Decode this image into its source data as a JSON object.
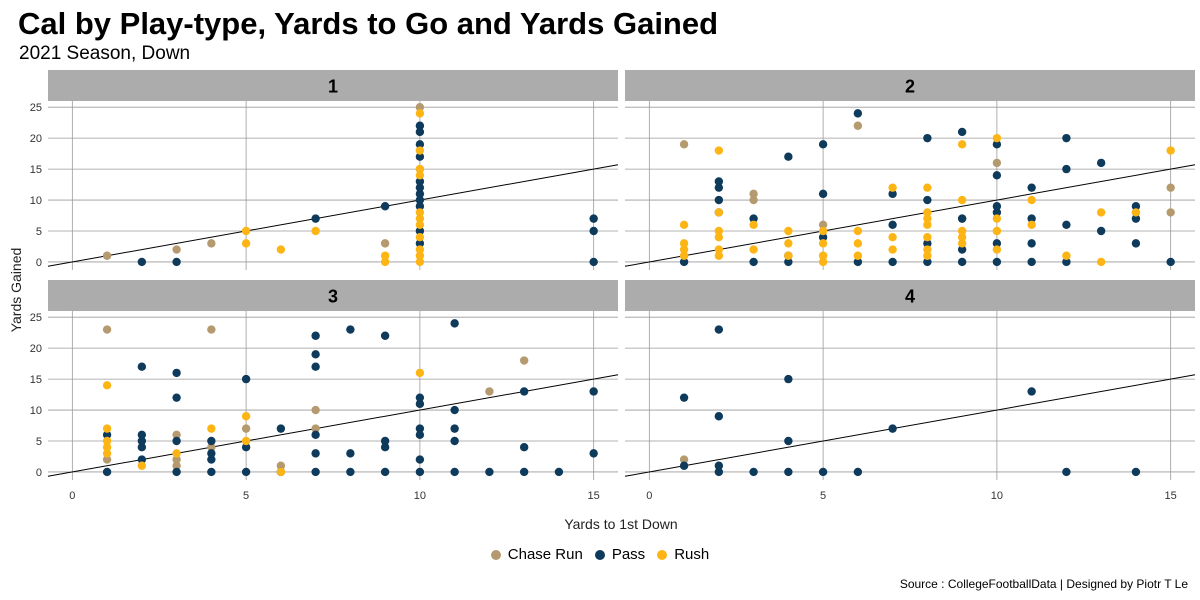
{
  "title": "Cal by Play-type, Yards to Go and Yards Gained",
  "subtitle": "2021 Season, Down",
  "source": "Source : CollegeFootballData | Designed by Piotr T Le",
  "colors": {
    "Chase Run": "#b49a6e",
    "Pass": "#0e3a5c",
    "Rush": "#fdb515",
    "strip": "#acacac",
    "grid": "#9a9a9a"
  },
  "chart_data": {
    "type": "scatter",
    "title": "Cal by Play-type, Yards to Go and Yards Gained",
    "xlabel": "Yards to 1st Down",
    "ylabel": "Yards Gained",
    "xlim": [
      -0.7,
      15.7
    ],
    "ylim": [
      -1.3,
      26.0
    ],
    "xticks": [
      0,
      5,
      10,
      15
    ],
    "yticks": [
      0,
      5,
      10,
      15,
      20,
      25
    ],
    "legend": [
      "Chase Run",
      "Pass",
      "Rush"
    ],
    "trend_line": {
      "x": [
        -0.7,
        15.7
      ],
      "y": [
        -0.7,
        15.7
      ]
    },
    "facets": [
      {
        "label": "1",
        "points": {
          "Chase Run": [
            [
              1,
              1
            ],
            [
              3,
              2
            ],
            [
              4,
              3
            ],
            [
              9,
              3
            ],
            [
              10,
              25
            ],
            [
              10,
              15
            ]
          ],
          "Pass": [
            [
              2,
              0
            ],
            [
              3,
              0
            ],
            [
              7,
              7
            ],
            [
              9,
              9
            ],
            [
              10,
              22
            ],
            [
              10,
              21
            ],
            [
              10,
              19
            ],
            [
              10,
              17
            ],
            [
              10,
              13
            ],
            [
              10,
              12
            ],
            [
              10,
              11
            ],
            [
              10,
              10
            ],
            [
              10,
              9
            ],
            [
              10,
              5
            ],
            [
              10,
              3
            ],
            [
              15,
              7
            ],
            [
              15,
              5
            ],
            [
              15,
              0
            ]
          ],
          "Rush": [
            [
              5,
              5
            ],
            [
              5,
              3
            ],
            [
              6,
              2
            ],
            [
              7,
              5
            ],
            [
              9,
              1
            ],
            [
              9,
              0
            ],
            [
              10,
              24
            ],
            [
              10,
              18
            ],
            [
              10,
              15
            ],
            [
              10,
              14
            ],
            [
              10,
              8
            ],
            [
              10,
              7
            ],
            [
              10,
              6
            ],
            [
              10,
              4
            ],
            [
              10,
              2
            ],
            [
              10,
              1
            ],
            [
              10,
              0
            ]
          ]
        }
      },
      {
        "label": "2",
        "points": {
          "Chase Run": [
            [
              1,
              19
            ],
            [
              2,
              10
            ],
            [
              3,
              11
            ],
            [
              3,
              10
            ],
            [
              5,
              6
            ],
            [
              6,
              22
            ],
            [
              9,
              7
            ],
            [
              10,
              16
            ],
            [
              14,
              8
            ],
            [
              15,
              12
            ],
            [
              15,
              8
            ]
          ],
          "Pass": [
            [
              1,
              0
            ],
            [
              2,
              13
            ],
            [
              2,
              12
            ],
            [
              2,
              10
            ],
            [
              2,
              8
            ],
            [
              3,
              7
            ],
            [
              3,
              0
            ],
            [
              4,
              17
            ],
            [
              4,
              1
            ],
            [
              4,
              0
            ],
            [
              5,
              19
            ],
            [
              5,
              11
            ],
            [
              5,
              4
            ],
            [
              6,
              24
            ],
            [
              6,
              0
            ],
            [
              7,
              11
            ],
            [
              7,
              6
            ],
            [
              7,
              0
            ],
            [
              8,
              20
            ],
            [
              8,
              10
            ],
            [
              8,
              3
            ],
            [
              8,
              0
            ],
            [
              9,
              21
            ],
            [
              9,
              7
            ],
            [
              9,
              2
            ],
            [
              9,
              0
            ],
            [
              10,
              19
            ],
            [
              10,
              14
            ],
            [
              10,
              9
            ],
            [
              10,
              8
            ],
            [
              10,
              3
            ],
            [
              10,
              0
            ],
            [
              11,
              12
            ],
            [
              11,
              7
            ],
            [
              11,
              3
            ],
            [
              11,
              0
            ],
            [
              12,
              20
            ],
            [
              12,
              15
            ],
            [
              12,
              6
            ],
            [
              12,
              0
            ],
            [
              13,
              16
            ],
            [
              13,
              5
            ],
            [
              14,
              9
            ],
            [
              14,
              7
            ],
            [
              14,
              3
            ],
            [
              15,
              0
            ]
          ],
          "Rush": [
            [
              1,
              6
            ],
            [
              1,
              3
            ],
            [
              1,
              2
            ],
            [
              1,
              1
            ],
            [
              2,
              18
            ],
            [
              2,
              8
            ],
            [
              2,
              5
            ],
            [
              2,
              4
            ],
            [
              2,
              2
            ],
            [
              2,
              1
            ],
            [
              3,
              6
            ],
            [
              3,
              2
            ],
            [
              4,
              5
            ],
            [
              4,
              3
            ],
            [
              4,
              1
            ],
            [
              5,
              5
            ],
            [
              5,
              3
            ],
            [
              5,
              1
            ],
            [
              5,
              0
            ],
            [
              6,
              5
            ],
            [
              6,
              3
            ],
            [
              6,
              1
            ],
            [
              7,
              12
            ],
            [
              7,
              4
            ],
            [
              7,
              2
            ],
            [
              8,
              12
            ],
            [
              8,
              8
            ],
            [
              8,
              7
            ],
            [
              8,
              6
            ],
            [
              8,
              4
            ],
            [
              8,
              2
            ],
            [
              8,
              1
            ],
            [
              9,
              19
            ],
            [
              9,
              10
            ],
            [
              9,
              5
            ],
            [
              9,
              4
            ],
            [
              9,
              3
            ],
            [
              10,
              20
            ],
            [
              10,
              7
            ],
            [
              10,
              5
            ],
            [
              10,
              2
            ],
            [
              11,
              10
            ],
            [
              11,
              6
            ],
            [
              12,
              1
            ],
            [
              13,
              8
            ],
            [
              13,
              0
            ],
            [
              14,
              8
            ],
            [
              15,
              18
            ]
          ]
        }
      },
      {
        "label": "3",
        "points": {
          "Chase Run": [
            [
              1,
              23
            ],
            [
              1,
              2
            ],
            [
              3,
              6
            ],
            [
              3,
              2
            ],
            [
              3,
              1
            ],
            [
              4,
              23
            ],
            [
              4,
              4
            ],
            [
              5,
              7
            ],
            [
              6,
              1
            ],
            [
              7,
              10
            ],
            [
              7,
              7
            ],
            [
              12,
              13
            ],
            [
              13,
              18
            ]
          ],
          "Pass": [
            [
              1,
              6
            ],
            [
              1,
              0
            ],
            [
              2,
              17
            ],
            [
              2,
              6
            ],
            [
              2,
              5
            ],
            [
              2,
              4
            ],
            [
              2,
              2
            ],
            [
              3,
              16
            ],
            [
              3,
              12
            ],
            [
              3,
              5
            ],
            [
              3,
              0
            ],
            [
              4,
              5
            ],
            [
              4,
              3
            ],
            [
              4,
              2
            ],
            [
              4,
              0
            ],
            [
              5,
              15
            ],
            [
              5,
              4
            ],
            [
              5,
              0
            ],
            [
              6,
              7
            ],
            [
              6,
              0
            ],
            [
              7,
              22
            ],
            [
              7,
              19
            ],
            [
              7,
              17
            ],
            [
              7,
              6
            ],
            [
              7,
              3
            ],
            [
              7,
              0
            ],
            [
              8,
              23
            ],
            [
              8,
              3
            ],
            [
              8,
              0
            ],
            [
              9,
              22
            ],
            [
              9,
              5
            ],
            [
              9,
              4
            ],
            [
              9,
              0
            ],
            [
              10,
              12
            ],
            [
              10,
              11
            ],
            [
              10,
              7
            ],
            [
              10,
              6
            ],
            [
              10,
              2
            ],
            [
              10,
              0
            ],
            [
              11,
              24
            ],
            [
              11,
              10
            ],
            [
              11,
              7
            ],
            [
              11,
              5
            ],
            [
              11,
              0
            ],
            [
              12,
              0
            ],
            [
              13,
              13
            ],
            [
              13,
              4
            ],
            [
              13,
              0
            ],
            [
              14,
              0
            ],
            [
              15,
              13
            ],
            [
              15,
              3
            ]
          ],
          "Rush": [
            [
              1,
              14
            ],
            [
              1,
              7
            ],
            [
              1,
              5
            ],
            [
              1,
              4
            ],
            [
              1,
              3
            ],
            [
              2,
              1
            ],
            [
              3,
              3
            ],
            [
              4,
              7
            ],
            [
              5,
              9
            ],
            [
              5,
              5
            ],
            [
              6,
              0
            ],
            [
              10,
              16
            ]
          ]
        }
      },
      {
        "label": "4",
        "points": {
          "Chase Run": [
            [
              1,
              2
            ]
          ],
          "Pass": [
            [
              1,
              12
            ],
            [
              1,
              1
            ],
            [
              2,
              23
            ],
            [
              2,
              9
            ],
            [
              2,
              1
            ],
            [
              2,
              0
            ],
            [
              3,
              0
            ],
            [
              4,
              15
            ],
            [
              4,
              5
            ],
            [
              4,
              0
            ],
            [
              5,
              0
            ],
            [
              6,
              0
            ],
            [
              7,
              7
            ],
            [
              11,
              13
            ],
            [
              12,
              0
            ],
            [
              14,
              0
            ]
          ],
          "Rush": []
        }
      }
    ]
  }
}
